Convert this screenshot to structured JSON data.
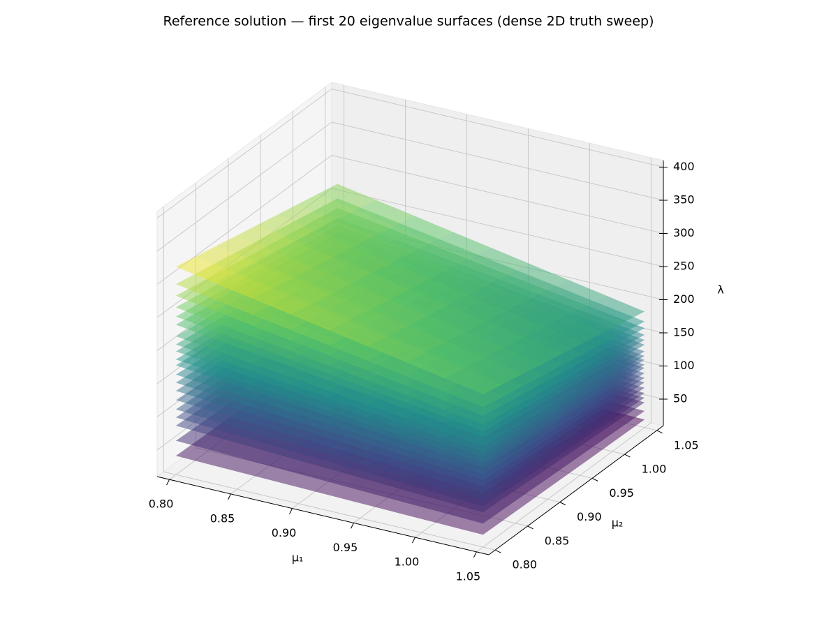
{
  "chart_data": {
    "type": "surface3d",
    "title": "Reference solution — first 20 eigenvalue surfaces (dense 2D truth sweep)",
    "x_label": "μ₁",
    "y_label": "μ₂",
    "z_label": "λ",
    "colormap": "viridis",
    "alpha": 0.5,
    "grid": true,
    "xlim": [
      0.79,
      1.06
    ],
    "ylim": [
      0.79,
      1.06
    ],
    "zlim": [
      10,
      410
    ],
    "xticks": [
      {
        "value": 0.8,
        "label": "0.80"
      },
      {
        "value": 0.85,
        "label": "0.85"
      },
      {
        "value": 0.9,
        "label": "0.90"
      },
      {
        "value": 0.95,
        "label": "0.95"
      },
      {
        "value": 1.0,
        "label": "1.00"
      },
      {
        "value": 1.05,
        "label": "1.05"
      }
    ],
    "yticks": [
      {
        "value": 0.8,
        "label": "0.80"
      },
      {
        "value": 0.85,
        "label": "0.85"
      },
      {
        "value": 0.9,
        "label": "0.90"
      },
      {
        "value": 0.95,
        "label": "0.95"
      },
      {
        "value": 1.0,
        "label": "1.00"
      },
      {
        "value": 1.05,
        "label": "1.05"
      }
    ],
    "zticks": [
      50,
      100,
      150,
      200,
      250,
      300,
      350,
      400
    ],
    "x": [
      0.8,
      1.05
    ],
    "y": [
      0.8,
      1.05
    ],
    "series": [
      {
        "values": [
          [
            38.5,
            31.9
          ],
          [
            28.6,
            22
          ]
        ]
      },
      {
        "values": [
          [
            61.3,
            50.8
          ],
          [
            45.5,
            35
          ]
        ]
      },
      {
        "values": [
          [
            84,
            69.6
          ],
          [
            62.4,
            48
          ]
        ]
      },
      {
        "values": [
          [
            96.3,
            79.8
          ],
          [
            71.5,
            55
          ]
        ]
      },
      {
        "values": [
          [
            108.5,
            89.9
          ],
          [
            80.6,
            62
          ]
        ]
      },
      {
        "values": [
          [
            122.5,
            101.5
          ],
          [
            91,
            70
          ]
        ]
      },
      {
        "values": [
          [
            136.5,
            113.1
          ],
          [
            101.4,
            78
          ]
        ]
      },
      {
        "values": [
          [
            148.8,
            123.3
          ],
          [
            110.5,
            85
          ]
        ]
      },
      {
        "values": [
          [
            161,
            133.4
          ],
          [
            119.6,
            92
          ]
        ]
      },
      {
        "values": [
          [
            175,
            145
          ],
          [
            130,
            100
          ]
        ]
      },
      {
        "values": [
          [
            183.8,
            152.3
          ],
          [
            136.5,
            105
          ]
        ]
      },
      {
        "values": [
          [
            196,
            162.4
          ],
          [
            145.6,
            112
          ]
        ]
      },
      {
        "values": [
          [
            206.5,
            171.1
          ],
          [
            153.4,
            118
          ]
        ]
      },
      {
        "values": [
          [
            218.8,
            181.3
          ],
          [
            162.5,
            125
          ]
        ]
      },
      {
        "values": [
          [
            236.3,
            195.8
          ],
          [
            175.5,
            135
          ]
        ]
      },
      {
        "values": [
          [
            248.5,
            205.9
          ],
          [
            184.6,
            142
          ]
        ]
      },
      {
        "values": [
          [
            262.5,
            217.5
          ],
          [
            195,
            150
          ]
        ]
      },
      {
        "values": [
          [
            280,
            232
          ],
          [
            208,
            160
          ]
        ]
      },
      {
        "values": [
          [
            297.5,
            246.5
          ],
          [
            221,
            170
          ]
        ]
      },
      {
        "values": [
          [
            323.8,
            268.3
          ],
          [
            240.5,
            185
          ]
        ]
      }
    ]
  }
}
